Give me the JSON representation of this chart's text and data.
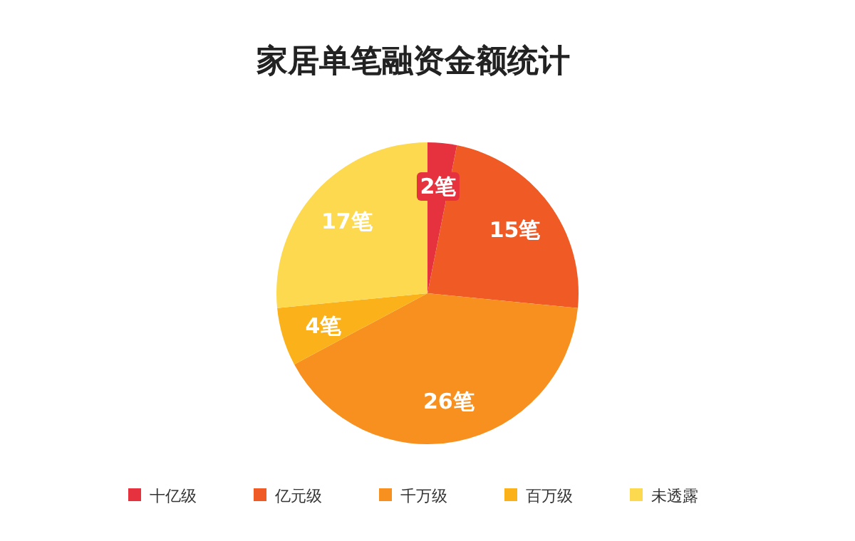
{
  "chart_data": {
    "type": "pie",
    "title": "家居单笔融资金额统计",
    "categories": [
      "十亿级",
      "亿元级",
      "千万级",
      "百万级",
      "未透露"
    ],
    "values": [
      2,
      15,
      26,
      4,
      17
    ],
    "value_labels": [
      "2笔",
      "15笔",
      "26笔",
      "4笔",
      "17笔"
    ],
    "colors": [
      "#e5323e",
      "#f05a24",
      "#f7901e",
      "#fbb21a",
      "#fdd94f"
    ],
    "legend": "bottom"
  }
}
